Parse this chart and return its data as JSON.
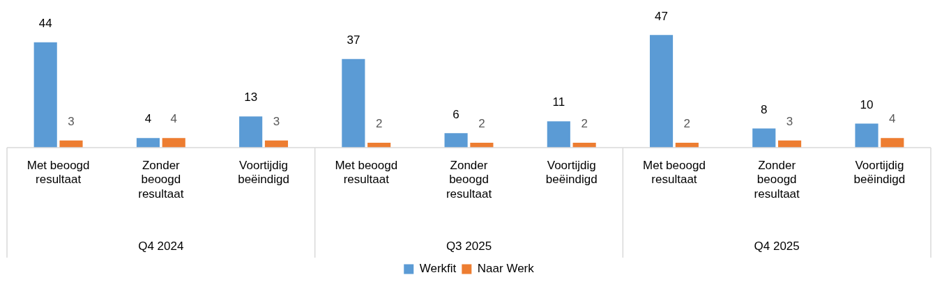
{
  "chart_data": {
    "type": "bar",
    "categories": [
      "Met beoogd resultaat",
      "Zonder beoogd resultaat",
      "Voortijdig beëindigd",
      "Met beoogd resultaat",
      "Zonder beoogd resultaat",
      "Voortijdig beëindigd",
      "Met beoogd resultaat",
      "Zonder beoogd resultaat",
      "Voortijdig beëindigd"
    ],
    "series": [
      {
        "name": "Werkfit",
        "color": "#5b9bd5",
        "values": [
          44,
          4,
          13,
          37,
          6,
          11,
          47,
          8,
          10
        ]
      },
      {
        "name": "Naar Werk",
        "color": "#ed7d31",
        "values": [
          3,
          4,
          3,
          2,
          2,
          2,
          2,
          3,
          4
        ]
      }
    ],
    "annotations": [
      "Q4 2024",
      "Q3 2025",
      "Q4 2025"
    ],
    "data_labels": true,
    "legend": "bottom",
    "grid": false
  }
}
